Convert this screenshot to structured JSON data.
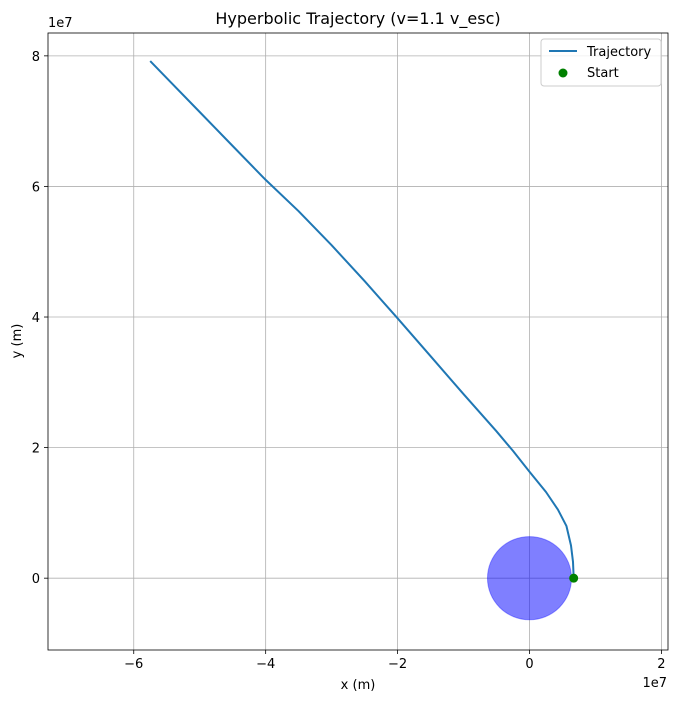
{
  "chart_data": {
    "type": "line",
    "title": "Hyperbolic Trajectory (v=1.1 v_esc)",
    "xlabel": "x (m)",
    "ylabel": "y (m)",
    "x_offset_label": "1e7",
    "y_offset_label": "1e7",
    "xlim": [
      -73000000.0,
      21000000.0
    ],
    "ylim": [
      -11000000.0,
      83500000.0
    ],
    "x_ticks": [
      -60000000.0,
      -40000000.0,
      -20000000.0,
      0,
      20000000.0
    ],
    "x_tick_labels": [
      "−6",
      "−4",
      "−2",
      "0",
      "2"
    ],
    "y_ticks": [
      0,
      20000000.0,
      40000000.0,
      60000000.0,
      80000000.0
    ],
    "y_tick_labels": [
      "0",
      "2",
      "4",
      "6",
      "8"
    ],
    "grid": true,
    "legend_position": "upper-right",
    "series": [
      {
        "name": "Trajectory",
        "color": "#1f77b4",
        "x": [
          6700000.0,
          6600000.0,
          6300000.0,
          5600000.0,
          4300000.0,
          2500000.0,
          0,
          -2500000.0,
          -5000000.0,
          -10000000.0,
          -15000000.0,
          -20000000.0,
          -25000000.0,
          -30000000.0,
          -35000000.0,
          -40000000.0,
          -45000000.0,
          -50000000.0,
          -55000000.0,
          -57500000.0
        ],
        "y": [
          0,
          2500000.0,
          5000000.0,
          8000000.0,
          10500000.0,
          13200000.0,
          16300000.0,
          19500000.0,
          22500000.0,
          28200000.0,
          34000000.0,
          39800000.0,
          45500000.0,
          51000000.0,
          56200000.0,
          61000000.0,
          66200000.0,
          71400000.0,
          76600000.0,
          79200000.0
        ]
      }
    ],
    "points": [
      {
        "name": "Start",
        "color": "#008000",
        "x": 6700000.0,
        "y": 0
      }
    ],
    "body": {
      "color": "#0000ff",
      "opacity": 0.5,
      "cx": 0,
      "cy": 0,
      "r": 6371000.0
    }
  }
}
